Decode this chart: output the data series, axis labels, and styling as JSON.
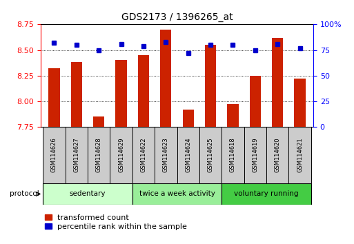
{
  "title": "GDS2173 / 1396265_at",
  "samples": [
    "GSM114626",
    "GSM114627",
    "GSM114628",
    "GSM114629",
    "GSM114622",
    "GSM114623",
    "GSM114624",
    "GSM114625",
    "GSM114618",
    "GSM114619",
    "GSM114620",
    "GSM114621"
  ],
  "transformed_count": [
    8.32,
    8.38,
    7.85,
    8.4,
    8.45,
    8.7,
    7.92,
    8.55,
    7.97,
    8.25,
    8.62,
    8.22
  ],
  "percentile_rank": [
    82,
    80,
    75,
    81,
    79,
    83,
    72,
    80,
    80,
    75,
    81,
    77
  ],
  "groups": [
    {
      "label": "sedentary",
      "start": 0,
      "end": 4,
      "color": "#ccffcc"
    },
    {
      "label": "twice a week activity",
      "start": 4,
      "end": 8,
      "color": "#99ee99"
    },
    {
      "label": "voluntary running",
      "start": 8,
      "end": 12,
      "color": "#44cc44"
    }
  ],
  "ylim_left": [
    7.75,
    8.75
  ],
  "ylim_right": [
    0,
    100
  ],
  "yticks_left": [
    7.75,
    8.0,
    8.25,
    8.5,
    8.75
  ],
  "yticks_right": [
    0,
    25,
    50,
    75,
    100
  ],
  "bar_color": "#cc2200",
  "dot_color": "#0000cc",
  "bar_width": 0.5,
  "background_color": "#ffffff",
  "cell_color": "#cccccc",
  "figsize": [
    5.13,
    3.54
  ],
  "dpi": 100
}
